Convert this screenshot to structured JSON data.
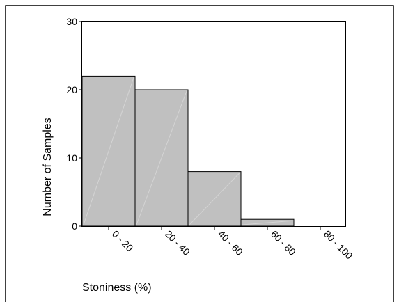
{
  "chart_data": {
    "type": "bar",
    "title": "",
    "xlabel": "Stoniness (%)",
    "ylabel": "Number of Samples",
    "categories": [
      "0 - 20",
      "20 - 40",
      "40 - 60",
      "60 - 80",
      "80 - 100"
    ],
    "values": [
      22,
      20,
      8,
      1,
      0
    ],
    "ylim": [
      0,
      30
    ],
    "yticks": [
      "0",
      "10",
      "20",
      "30"
    ],
    "grid": false,
    "legend": "none",
    "bar_color": "#c0c0c0",
    "bar_edge_color": "#000000"
  }
}
